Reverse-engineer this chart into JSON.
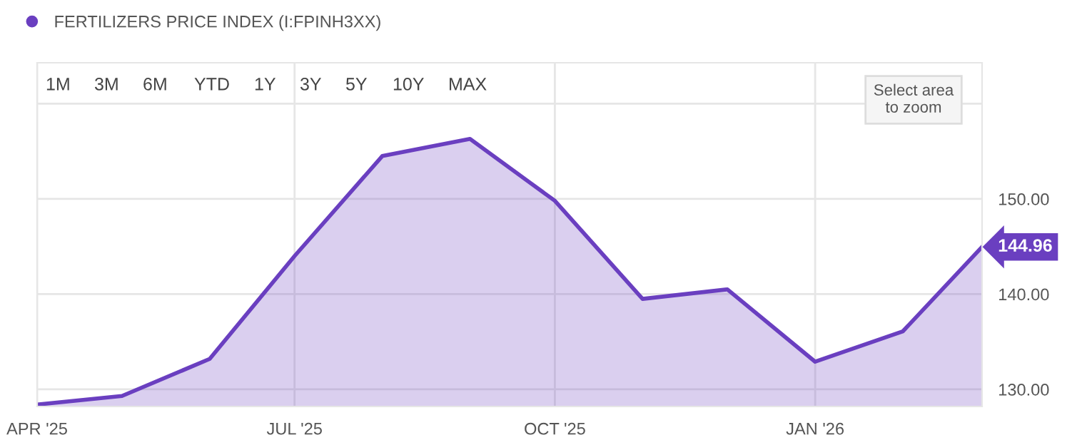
{
  "chart_data": {
    "type": "area",
    "title": null,
    "x": [
      "2025-04",
      "2025-05",
      "2025-06",
      "2025-07",
      "2025-08",
      "2025-09",
      "2025-10",
      "2025-11",
      "2025-12",
      "2026-01",
      "2026-02",
      "2026-03"
    ],
    "series": [
      {
        "name": "FERTILIZERS PRICE INDEX (I:FPINH3XX)",
        "color": "#6a3fc0",
        "values": [
          128.4,
          129.3,
          133.2,
          144.0,
          154.5,
          156.3,
          149.8,
          139.5,
          140.5,
          132.9,
          136.1,
          144.96
        ],
        "value_labels": [
          null,
          null,
          null,
          null,
          null,
          null,
          null,
          null,
          null,
          null,
          null,
          "144.96"
        ]
      }
    ],
    "xlim": [
      "2025-04",
      "2026-03"
    ],
    "xticks": [
      {
        "value": "2025-04",
        "label": "APR '25"
      },
      {
        "value": "2025-07",
        "label": "JUL '25"
      },
      {
        "value": "2025-10",
        "label": "OCT '25"
      },
      {
        "value": "2026-01",
        "label": "JAN '26"
      }
    ],
    "ylim": [
      128.2,
      164.3
    ],
    "yticks": [
      {
        "value": 130,
        "label": "130.00"
      },
      {
        "value": 140,
        "label": "140.00"
      },
      {
        "value": 150,
        "label": "150.00"
      },
      {
        "value": 160,
        "label": null
      }
    ],
    "grid": true,
    "legend": "top left",
    "annotations": [
      "1M",
      "3M",
      "6M",
      "YTD",
      "1Y",
      "3Y",
      "5Y",
      "10Y",
      "MAX",
      "Select area\nto zoom"
    ]
  }
}
